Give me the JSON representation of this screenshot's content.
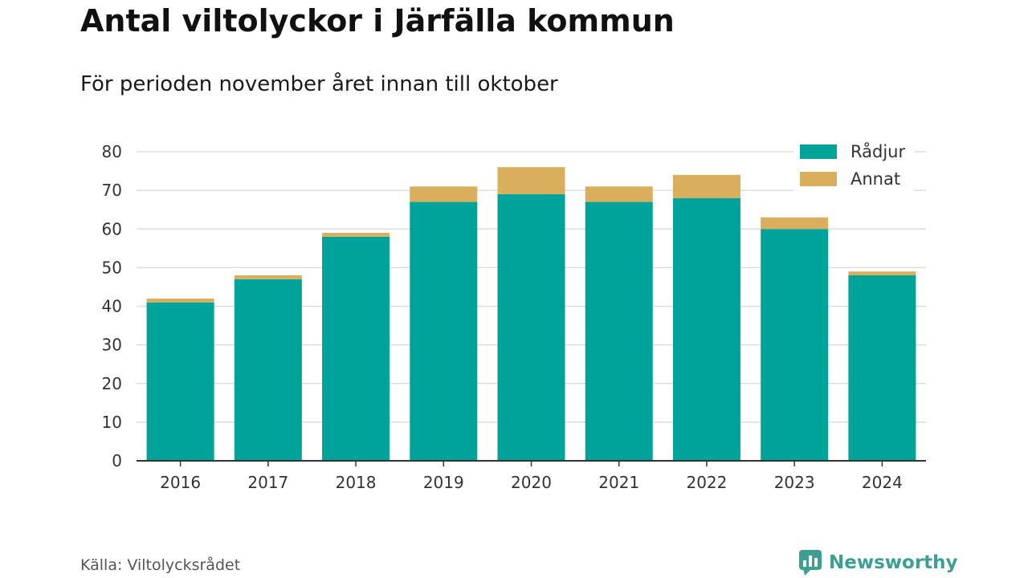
{
  "header": {
    "title": "Antal viltolyckor i Järfälla kommun",
    "subtitle": "För perioden november året innan till oktober"
  },
  "footer": {
    "source": "Källa: Viltolycksrådet",
    "brand": "Newsworthy",
    "brand_icon": "bar-chart-speech-bubble-icon"
  },
  "colors": {
    "radjur": "#00a39a",
    "annat": "#d9ae5c",
    "grid": "#dddddd",
    "axis": "#333333",
    "brand": "#3d9f93"
  },
  "chart_data": {
    "type": "bar",
    "stacked": true,
    "title": "Antal viltolyckor i Järfälla kommun",
    "subtitle": "För perioden november året innan till oktober",
    "xlabel": "",
    "ylabel": "",
    "categories": [
      "2016",
      "2017",
      "2018",
      "2019",
      "2020",
      "2021",
      "2022",
      "2023",
      "2024"
    ],
    "series": [
      {
        "name": "Rådjur",
        "values": [
          41,
          47,
          58,
          67,
          69,
          67,
          68,
          60,
          48
        ]
      },
      {
        "name": "Annat",
        "values": [
          1,
          1,
          1,
          4,
          7,
          4,
          6,
          3,
          1
        ]
      }
    ],
    "ylim": [
      0,
      80
    ],
    "yticks": [
      0,
      10,
      20,
      30,
      40,
      50,
      60,
      70,
      80
    ],
    "grid": true,
    "legend_position": "top-right"
  }
}
